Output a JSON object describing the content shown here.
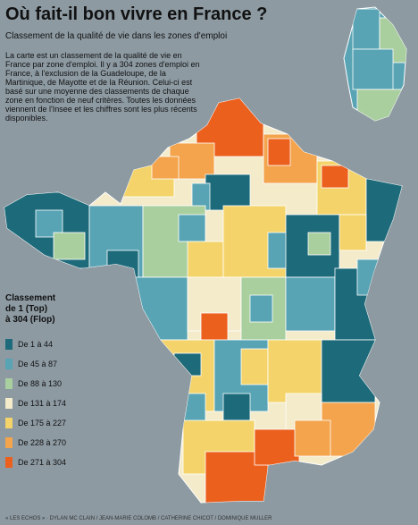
{
  "title": "Où fait-il bon vivre en France ?",
  "subtitle": "Classement de la qualité de vie dans les zones d'emploi",
  "description": "La carte est un classement de la qualité de vie en France par zone d'emploi. Il y a 304 zones d'emploi en France, à l'exclusion de la Guadeloupe, de la Martinique, de Mayotte et de la Réunion. Celui-ci est basé sur une moyenne des classements de chaque zone en fonction de neuf critères. Toutes les données viennent de l'Insee et les chiffres sont les plus récents disponibles.",
  "legend": {
    "title_lines": [
      "Classement",
      "de 1 (Top)",
      "à 304 (Flop)"
    ],
    "items": [
      {
        "label": "De 1 à 44",
        "color": "#1d6a7a"
      },
      {
        "label": "De 45 à 87",
        "color": "#58a4b4"
      },
      {
        "label": "De 88 à 130",
        "color": "#a9cf9f"
      },
      {
        "label": "De 131 à 174",
        "color": "#f4ebcb"
      },
      {
        "label": "De 175 à 227",
        "color": "#f4d46a"
      },
      {
        "label": "De 228 à 270",
        "color": "#f4a44c"
      },
      {
        "label": "De 271 à 304",
        "color": "#ec601e"
      }
    ]
  },
  "credit": "« LES ECHOS » · DYLAN MC CLAIN / JEAN-MARIE COLOMB / CATHERINE CHICOT / DOMINIQUE MULLER",
  "map": {
    "background_color": "#8d9aa2",
    "region_border_color": "#ffffff",
    "regions": [
      "france-mainland",
      "corsica"
    ]
  }
}
